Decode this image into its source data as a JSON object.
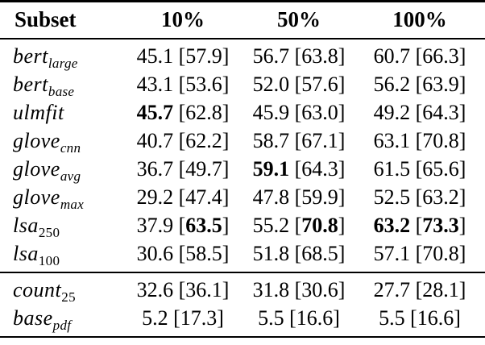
{
  "page": {
    "background": "#ffffff",
    "text_color": "#000000",
    "rule_color": "#000000"
  },
  "table": {
    "columns": [
      "Subset",
      "10%",
      "50%",
      "100%"
    ],
    "groups": [
      {
        "name": "model-rows",
        "rows": [
          {
            "label": "bert",
            "sub": "large",
            "sub_italic": true,
            "cells": [
              {
                "main": "45.1",
                "bracket": "57.9",
                "main_bold": false,
                "bracket_bold": false
              },
              {
                "main": "56.7",
                "bracket": "63.8",
                "main_bold": false,
                "bracket_bold": false
              },
              {
                "main": "60.7",
                "bracket": "66.3",
                "main_bold": false,
                "bracket_bold": false
              }
            ]
          },
          {
            "label": "bert",
            "sub": "base",
            "sub_italic": true,
            "cells": [
              {
                "main": "43.1",
                "bracket": "53.6",
                "main_bold": false,
                "bracket_bold": false
              },
              {
                "main": "52.0",
                "bracket": "57.6",
                "main_bold": false,
                "bracket_bold": false
              },
              {
                "main": "56.2",
                "bracket": "63.9",
                "main_bold": false,
                "bracket_bold": false
              }
            ]
          },
          {
            "label": "ulmfit",
            "sub": "",
            "sub_italic": false,
            "cells": [
              {
                "main": "45.7",
                "bracket": "62.8",
                "main_bold": true,
                "bracket_bold": false
              },
              {
                "main": "45.9",
                "bracket": "63.0",
                "main_bold": false,
                "bracket_bold": false
              },
              {
                "main": "49.2",
                "bracket": "64.3",
                "main_bold": false,
                "bracket_bold": false
              }
            ]
          },
          {
            "label": "glove",
            "sub": "cnn",
            "sub_italic": true,
            "cells": [
              {
                "main": "40.7",
                "bracket": "62.2",
                "main_bold": false,
                "bracket_bold": false
              },
              {
                "main": "58.7",
                "bracket": "67.1",
                "main_bold": false,
                "bracket_bold": false
              },
              {
                "main": "63.1",
                "bracket": "70.8",
                "main_bold": false,
                "bracket_bold": false
              }
            ]
          },
          {
            "label": "glove",
            "sub": "avg",
            "sub_italic": true,
            "cells": [
              {
                "main": "36.7",
                "bracket": "49.7",
                "main_bold": false,
                "bracket_bold": false
              },
              {
                "main": "59.1",
                "bracket": "64.3",
                "main_bold": true,
                "bracket_bold": false
              },
              {
                "main": "61.5",
                "bracket": "65.6",
                "main_bold": false,
                "bracket_bold": false
              }
            ]
          },
          {
            "label": "glove",
            "sub": "max",
            "sub_italic": true,
            "cells": [
              {
                "main": "29.2",
                "bracket": "47.4",
                "main_bold": false,
                "bracket_bold": false
              },
              {
                "main": "47.8",
                "bracket": "59.9",
                "main_bold": false,
                "bracket_bold": false
              },
              {
                "main": "52.5",
                "bracket": "63.2",
                "main_bold": false,
                "bracket_bold": false
              }
            ]
          },
          {
            "label": "lsa",
            "sub": "250",
            "sub_italic": false,
            "cells": [
              {
                "main": "37.9",
                "bracket": "63.5",
                "main_bold": false,
                "bracket_bold": true
              },
              {
                "main": "55.2",
                "bracket": "70.8",
                "main_bold": false,
                "bracket_bold": true
              },
              {
                "main": "63.2",
                "bracket": "73.3",
                "main_bold": true,
                "bracket_bold": true
              }
            ]
          },
          {
            "label": "lsa",
            "sub": "100",
            "sub_italic": false,
            "cells": [
              {
                "main": "30.6",
                "bracket": "58.5",
                "main_bold": false,
                "bracket_bold": false
              },
              {
                "main": "51.8",
                "bracket": "68.5",
                "main_bold": false,
                "bracket_bold": false
              },
              {
                "main": "57.1",
                "bracket": "70.8",
                "main_bold": false,
                "bracket_bold": false
              }
            ]
          }
        ]
      },
      {
        "name": "baseline-rows",
        "rows": [
          {
            "label": "count",
            "sub": "25",
            "sub_italic": false,
            "cells": [
              {
                "main": "32.6",
                "bracket": "36.1",
                "main_bold": false,
                "bracket_bold": false
              },
              {
                "main": "31.8",
                "bracket": "30.6",
                "main_bold": false,
                "bracket_bold": false
              },
              {
                "main": "27.7",
                "bracket": "28.1",
                "main_bold": false,
                "bracket_bold": false
              }
            ]
          },
          {
            "label": "base",
            "sub": "pdf",
            "sub_italic": true,
            "cells": [
              {
                "main": "5.2",
                "bracket": "17.3",
                "main_bold": false,
                "bracket_bold": false
              },
              {
                "main": "5.5",
                "bracket": "16.6",
                "main_bold": false,
                "bracket_bold": false
              },
              {
                "main": "5.5",
                "bracket": "16.6",
                "main_bold": false,
                "bracket_bold": false
              }
            ]
          }
        ]
      }
    ]
  }
}
